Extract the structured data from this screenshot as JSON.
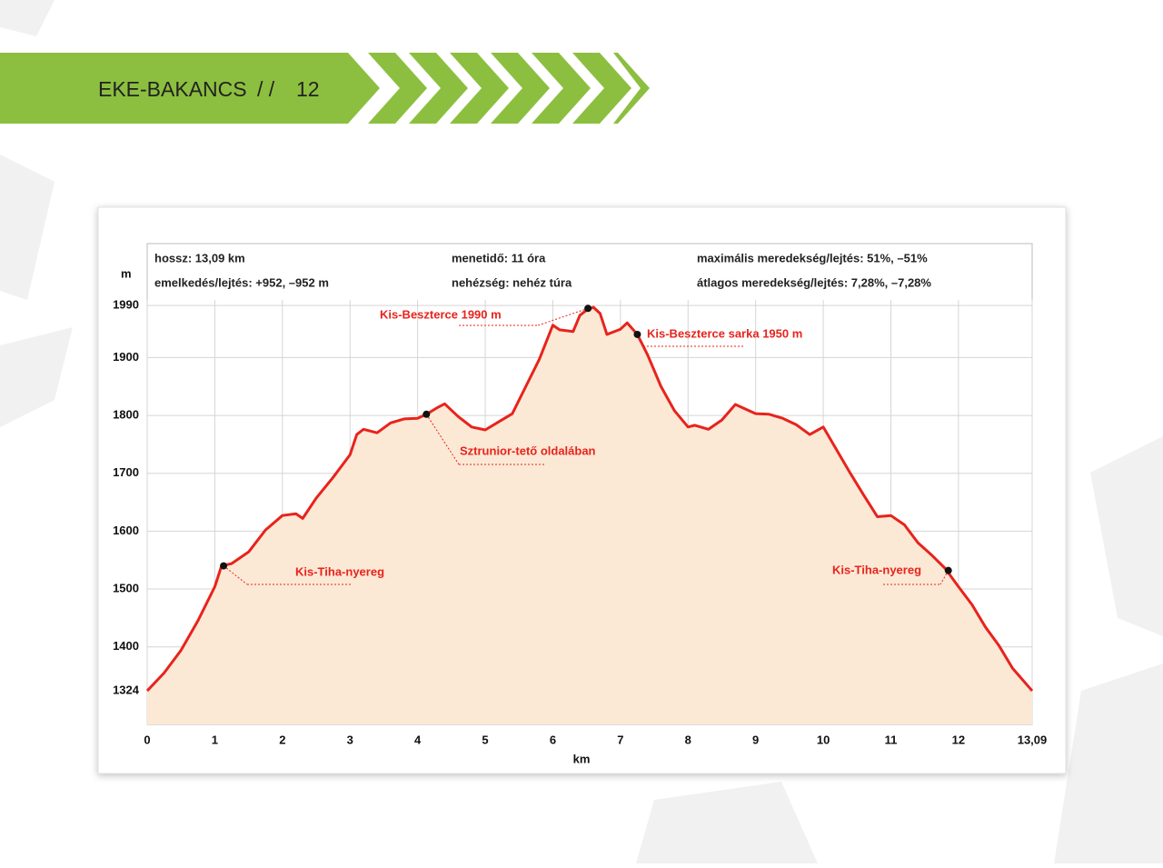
{
  "header": {
    "brand": "EKE-BAKANCS",
    "separator": "/ /",
    "page": "12"
  },
  "chart_data": {
    "type": "area",
    "stats": [
      "hossz: 13,09 km",
      "emelkedés/lejtés: +952, –952 m",
      "menetidő: 11 óra",
      "nehézség: nehéz túra",
      "maximális meredekség/lejtés: 51%, –51%",
      "átlagos meredekség/lejtés: 7,28%, –7,28%"
    ],
    "x_label": "km",
    "y_label": "m",
    "color": "#e8231c",
    "fill": "#fbe9d6",
    "grid": true,
    "x": [
      0,
      0.25,
      0.5,
      0.75,
      1,
      1.1,
      1.25,
      1.5,
      1.75,
      2,
      2.2,
      2.3,
      2.5,
      2.75,
      3,
      3.1,
      3.2,
      3.4,
      3.6,
      3.8,
      4,
      4.13,
      4.3,
      4.4,
      4.6,
      4.8,
      5,
      5.2,
      5.4,
      5.6,
      5.8,
      6,
      6.1,
      6.3,
      6.4,
      6.5,
      6.6,
      6.7,
      6.8,
      7,
      7.1,
      7.25,
      7.4,
      7.6,
      7.8,
      8,
      8.1,
      8.3,
      8.5,
      8.7,
      9,
      9.2,
      9.4,
      9.6,
      9.8,
      10,
      10.2,
      10.4,
      10.6,
      10.8,
      11,
      11.2,
      11.4,
      11.6,
      11.8,
      12,
      12.2,
      12.4,
      12.6,
      12.8,
      13.09
    ],
    "values": [
      1324,
      1355,
      1394,
      1445,
      1504,
      1540,
      1544,
      1564,
      1602,
      1627,
      1630,
      1622,
      1657,
      1693,
      1732,
      1767,
      1776,
      1770,
      1787,
      1794,
      1795,
      1802,
      1814,
      1820,
      1798,
      1780,
      1775,
      1789,
      1803,
      1850,
      1897,
      1956,
      1948,
      1945,
      1973,
      1982,
      1987,
      1976,
      1940,
      1949,
      1960,
      1940,
      1905,
      1850,
      1808,
      1780,
      1783,
      1776,
      1792,
      1819,
      1803,
      1802,
      1795,
      1784,
      1767,
      1780,
      1740,
      1700,
      1662,
      1625,
      1627,
      1611,
      1580,
      1559,
      1536,
      1504,
      1473,
      1434,
      1402,
      1363,
      1324
    ],
    "xlim": [
      0,
      13.09
    ],
    "ylim": [
      1266,
      2097
    ],
    "xticks": [
      0,
      1,
      2,
      3,
      4,
      5,
      6,
      7,
      8,
      9,
      10,
      11,
      12,
      {
        "value": 13.09,
        "label": "13,09"
      }
    ],
    "yticks": [
      1324,
      1400,
      1500,
      1600,
      1700,
      1800,
      1900,
      1990
    ],
    "annotations": [
      {
        "text": "Kis-Tiha-nyereg",
        "x": 1.13,
        "y": 1540
      },
      {
        "text": "Sztrunior-tető oldalában",
        "x": 4.13,
        "y": 1802
      },
      {
        "text": "Kis-Beszterce 1990 m",
        "x": 6.52,
        "y": 1985
      },
      {
        "text": "Kis-Beszterce sarka 1950 m",
        "x": 7.25,
        "y": 1940
      },
      {
        "text": "Kis-Tiha-nyereg",
        "x": 11.85,
        "y": 1532
      }
    ]
  }
}
